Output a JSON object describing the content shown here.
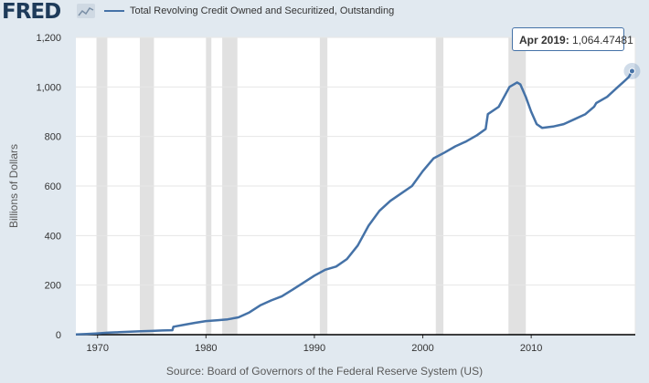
{
  "brand": {
    "logo_text": "FRED",
    "logo_icon": "fred-chart-icon"
  },
  "source_text": "Source: Board of Governors of the Federal Reserve System (US)",
  "tooltip": {
    "label": "Apr 2019:",
    "value": "1,064.47481"
  },
  "colors": {
    "line": "#4572a7",
    "recession": "#e1e1e1",
    "background": "#e1e9f0"
  },
  "chart_data": {
    "type": "line",
    "title": "",
    "xlabel": "",
    "ylabel": "Billions of Dollars",
    "ylim": [
      0,
      1200
    ],
    "xlim": [
      1968.0,
      2019.6
    ],
    "yticks": [
      0,
      200,
      400,
      600,
      800,
      1000,
      1200
    ],
    "ytick_labels": [
      "0",
      "200",
      "400",
      "600",
      "800",
      "1,000",
      "1,200"
    ],
    "xticks": [
      1970,
      1980,
      1990,
      2000,
      2010
    ],
    "xtick_labels": [
      "1970",
      "1980",
      "1990",
      "2000",
      "2010"
    ],
    "grid": true,
    "legend_position": "top-left",
    "recessions": [
      [
        1969.9,
        1970.9
      ],
      [
        1973.9,
        1975.2
      ],
      [
        1980.0,
        1980.5
      ],
      [
        1981.5,
        1982.9
      ],
      [
        1990.5,
        1991.2
      ],
      [
        2001.2,
        2001.9
      ],
      [
        2007.9,
        2009.5
      ]
    ],
    "series": [
      {
        "name": "Total Revolving Credit Owned and Securitized, Outstanding",
        "x": [
          1968.0,
          1969.0,
          1970.0,
          1971.0,
          1972.0,
          1973.0,
          1974.0,
          1975.0,
          1976.0,
          1976.9,
          1977.0,
          1978.0,
          1979.0,
          1980.0,
          1981.0,
          1982.0,
          1983.0,
          1984.0,
          1985.0,
          1986.0,
          1987.0,
          1988.0,
          1989.0,
          1990.0,
          1991.0,
          1992.0,
          1993.0,
          1994.0,
          1995.0,
          1996.0,
          1997.0,
          1998.0,
          1999.0,
          2000.0,
          2001.0,
          2002.0,
          2003.0,
          2004.0,
          2005.0,
          2005.8,
          2006.0,
          2007.0,
          2008.0,
          2008.7,
          2009.0,
          2009.5,
          2010.0,
          2010.5,
          2011.0,
          2012.0,
          2013.0,
          2014.0,
          2015.0,
          2015.8,
          2016.0,
          2017.0,
          2018.0,
          2018.5,
          2019.0,
          2019.3
        ],
        "y": [
          1,
          3,
          5,
          8,
          10,
          12,
          14,
          15,
          17,
          18,
          32,
          40,
          48,
          55,
          58,
          62,
          70,
          90,
          118,
          138,
          155,
          182,
          210,
          238,
          262,
          275,
          305,
          360,
          440,
          500,
          540,
          570,
          600,
          660,
          712,
          735,
          760,
          780,
          805,
          830,
          890,
          920,
          1000,
          1018,
          1010,
          960,
          900,
          850,
          835,
          840,
          850,
          870,
          890,
          920,
          935,
          960,
          1000,
          1020,
          1040,
          1064
        ]
      }
    ]
  }
}
